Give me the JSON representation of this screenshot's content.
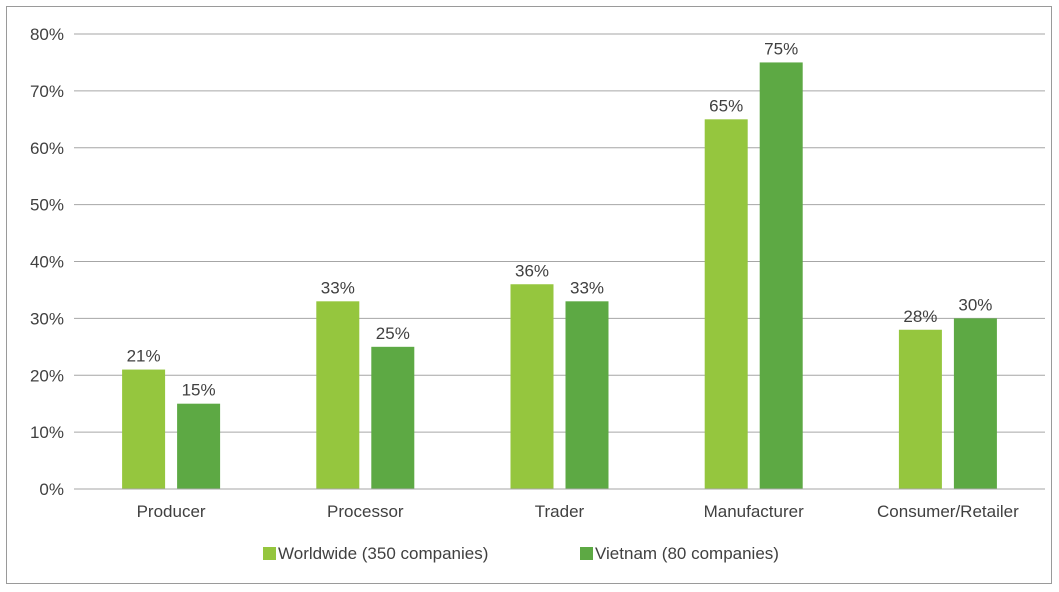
{
  "chart_data": {
    "type": "bar",
    "categories": [
      "Producer",
      "Processor",
      "Trader",
      "Manufacturer",
      "Consumer/Retailer"
    ],
    "series": [
      {
        "name": "Worldwide (350 companies)",
        "values": [
          21,
          33,
          36,
          65,
          28
        ],
        "labels": [
          "21%",
          "33%",
          "36%",
          "65%",
          "28%"
        ],
        "color": "#95c63e"
      },
      {
        "name": "Vietnam (80 companies)",
        "values": [
          15,
          25,
          33,
          75,
          30
        ],
        "labels": [
          "15%",
          "25%",
          "33%",
          "75%",
          "30%"
        ],
        "color": "#5da944"
      }
    ],
    "yticks": [
      0,
      10,
      20,
      30,
      40,
      50,
      60,
      70,
      80
    ],
    "ytick_labels": [
      "0%",
      "10%",
      "20%",
      "30%",
      "40%",
      "50%",
      "60%",
      "70%",
      "80%"
    ],
    "ylim": [
      0,
      80
    ],
    "grid": true,
    "legend": "bottom-center",
    "title": "",
    "xlabel": "",
    "ylabel": ""
  }
}
